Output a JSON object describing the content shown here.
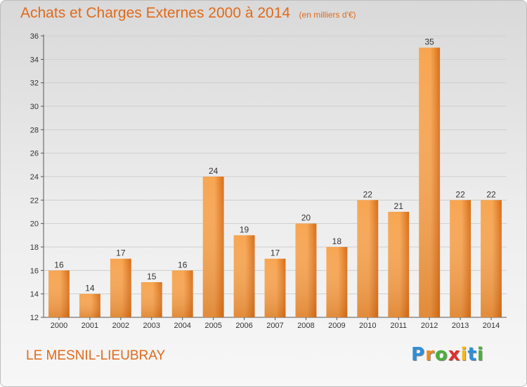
{
  "header": {
    "title": "Achats et Charges Externes 2000 à 2014",
    "unit": "(en milliers d'€)"
  },
  "footer": {
    "commune": "LE MESNIL-LIEUBRAY",
    "logo_letters": [
      "P",
      "r",
      "o",
      "x",
      "i",
      "t",
      "i"
    ],
    "logo_colors": [
      "#2e8fd6",
      "#f08a1c",
      "#4cae3c",
      "#e2302d",
      "#f2b81d",
      "#2e8fd6",
      "#4cae3c"
    ]
  },
  "colors": {
    "bar_light": "#f7a551",
    "bar_dark": "#d76d16",
    "title": "#e06a1a",
    "grid": "#cfcfcf",
    "axis": "#555555"
  },
  "chart_data": {
    "type": "bar",
    "categories": [
      "2000",
      "2001",
      "2002",
      "2003",
      "2004",
      "2005",
      "2006",
      "2007",
      "2008",
      "2009",
      "2010",
      "2011",
      "2012",
      "2013",
      "2014"
    ],
    "values": [
      16,
      14,
      17,
      15,
      16,
      24,
      19,
      17,
      20,
      18,
      22,
      21,
      35,
      22,
      22
    ],
    "title": "Achats et Charges Externes 2000 à 2014",
    "xlabel": "",
    "ylabel": "",
    "ylim": [
      12,
      36
    ],
    "yticks": [
      12,
      14,
      16,
      18,
      20,
      22,
      24,
      26,
      28,
      30,
      32,
      34,
      36
    ],
    "grid": true,
    "data_labels": true
  }
}
